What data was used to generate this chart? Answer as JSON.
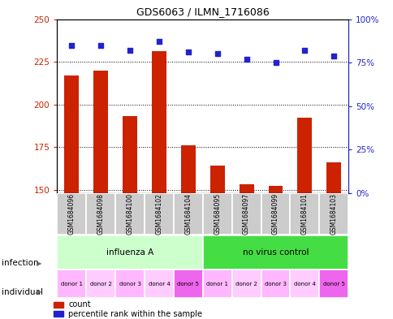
{
  "title": "GDS6063 / ILMN_1716086",
  "samples": [
    "GSM1684096",
    "GSM1684098",
    "GSM1684100",
    "GSM1684102",
    "GSM1684104",
    "GSM1684095",
    "GSM1684097",
    "GSM1684099",
    "GSM1684101",
    "GSM1684103"
  ],
  "counts": [
    217,
    220,
    193,
    231,
    176,
    164,
    153,
    152,
    192,
    166
  ],
  "percentiles": [
    85,
    85,
    82,
    87,
    81,
    80,
    77,
    75,
    82,
    79
  ],
  "ylim_left": [
    148,
    250
  ],
  "ylim_right": [
    0,
    100
  ],
  "yticks_left": [
    150,
    175,
    200,
    225,
    250
  ],
  "yticks_right": [
    0,
    25,
    50,
    75,
    100
  ],
  "infection_groups": [
    {
      "label": "influenza A",
      "start": 0,
      "end": 5,
      "color": "#CCFFCC"
    },
    {
      "label": "no virus control",
      "start": 5,
      "end": 10,
      "color": "#44DD44"
    }
  ],
  "individuals": [
    "donor 1",
    "donor 2",
    "donor 3",
    "donor 4",
    "donor 5",
    "donor 1",
    "donor 2",
    "donor 3",
    "donor 4",
    "donor 5"
  ],
  "individual_colors": [
    "#FFB8FF",
    "#FFCCFF",
    "#FFB8FF",
    "#FFCCFF",
    "#EE66EE",
    "#FFB8FF",
    "#FFCCFF",
    "#FFB8FF",
    "#FFCCFF",
    "#EE66EE"
  ],
  "bar_color": "#CC2200",
  "dot_color": "#2222CC",
  "label_color_left": "#CC2200",
  "label_color_right": "#2222CC",
  "sample_bg": "#CCCCCC"
}
